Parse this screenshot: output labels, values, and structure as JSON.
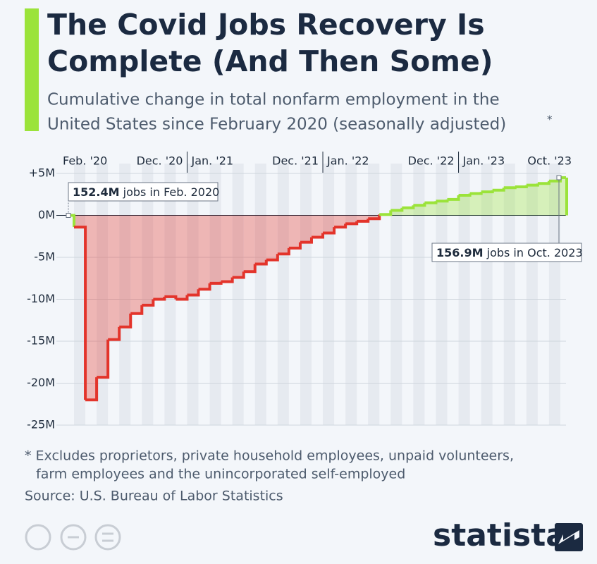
{
  "chart_data": {
    "type": "step",
    "title": [
      "The Covid Jobs Recovery Is",
      "Complete (And Then Some)"
    ],
    "subtitle": [
      "Cumulative change in total nonfarm employment in the",
      "United States since February 2020 (seasonally adjusted)"
    ],
    "subtitle_note": "*",
    "categories": [
      "Feb. '20",
      null,
      null,
      null,
      null,
      null,
      null,
      null,
      null,
      null,
      "Dec. '20",
      "Jan. '21",
      null,
      null,
      null,
      null,
      null,
      null,
      null,
      null,
      null,
      null,
      "Dec. '21",
      "Jan. '22",
      null,
      null,
      null,
      null,
      null,
      null,
      null,
      null,
      null,
      null,
      "Dec. '22",
      "Jan. '23",
      null,
      null,
      null,
      null,
      null,
      null,
      null,
      null,
      "Oct. '23"
    ],
    "values": [
      0,
      -1.4,
      -22.0,
      -19.3,
      -14.8,
      -13.3,
      -11.7,
      -10.7,
      -10.0,
      -9.7,
      -10.0,
      -9.5,
      -8.8,
      -8.1,
      -7.9,
      -7.4,
      -6.7,
      -5.8,
      -5.3,
      -4.6,
      -3.9,
      -3.2,
      -2.6,
      -2.1,
      -1.4,
      -1.0,
      -0.7,
      -0.4,
      0.1,
      0.6,
      0.9,
      1.2,
      1.5,
      1.7,
      1.9,
      2.4,
      2.6,
      2.8,
      3.0,
      3.3,
      3.4,
      3.6,
      3.8,
      4.1,
      4.5
    ],
    "negative_color": "#e3342b",
    "positive_color": "#9be33a",
    "ylim": [
      -25,
      5
    ],
    "yticks": [
      {
        "value": 5,
        "label": "+5M"
      },
      {
        "value": 0,
        "label": "0M"
      },
      {
        "value": -5,
        "label": "-5M"
      },
      {
        "value": -10,
        "label": "-10M"
      },
      {
        "value": -15,
        "label": "-15M"
      },
      {
        "value": -20,
        "label": "-20M"
      },
      {
        "value": -25,
        "label": "-25M"
      }
    ],
    "grid": true,
    "annotations": [
      {
        "bold": "152.4M",
        "text": " jobs in Feb. 2020"
      },
      {
        "bold": "156.9M",
        "text": " jobs in Oct. 2023"
      }
    ],
    "footnote": [
      "* Excludes proprietors, private household employees, unpaid volunteers,",
      "farm employees and the unincorporated self-employed"
    ],
    "source": "Source: U.S. Bureau of Labor Statistics",
    "brand": "statista"
  }
}
